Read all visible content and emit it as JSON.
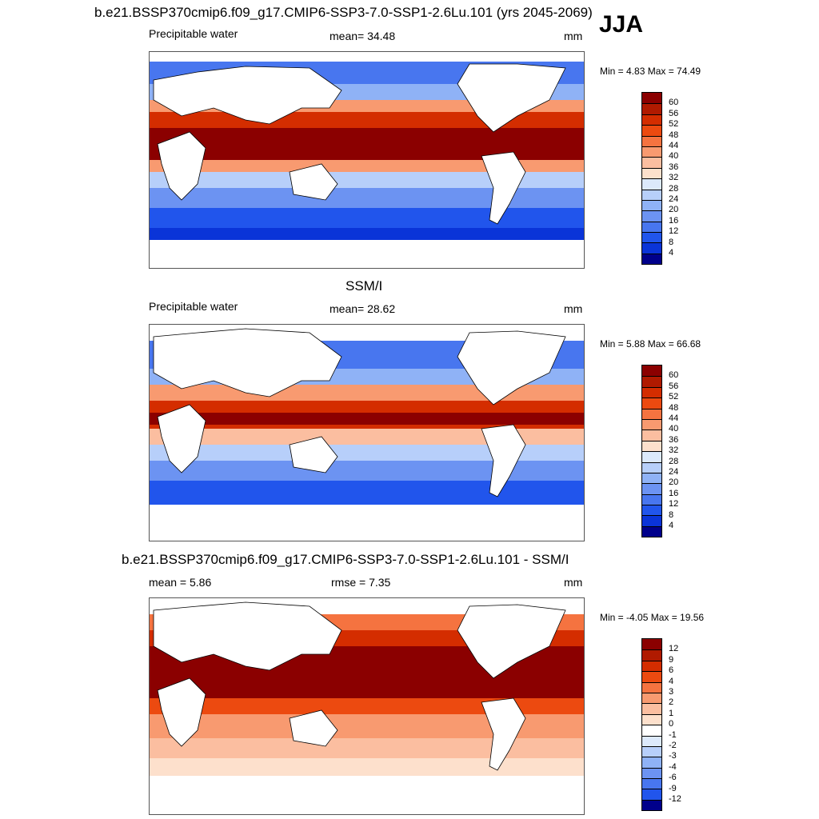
{
  "header": {
    "title": "b.e21.BSSP370cmip6.f09_g17.CMIP6-SSP3-7.0-SSP1-2.6Lu.101 (yrs 2045-2069)",
    "season": "JJA"
  },
  "panels": [
    {
      "field": "Precipitable water",
      "stat_text": "mean=  34.48",
      "units": "mm",
      "minmax": "Min =   4.83 Max =  74.49"
    },
    {
      "title": "SSM/I",
      "field": "Precipitable water",
      "stat_text": "mean=  28.62",
      "units": "mm",
      "minmax": "Min =   5.88 Max =  66.68"
    },
    {
      "title": "b.e21.BSSP370cmip6.f09_g17.CMIP6-SSP3-7.0-SSP1-2.6Lu.101 - SSM/I",
      "stat_text": "mean =   5.86",
      "rmse_text": "rmse =   7.35",
      "units": "mm",
      "minmax": "Min =  -4.05 Max =  19.56"
    }
  ],
  "colorbars": {
    "abs": {
      "labels": [
        "60",
        "56",
        "52",
        "48",
        "44",
        "40",
        "36",
        "32",
        "28",
        "24",
        "20",
        "16",
        "12",
        "8",
        "4"
      ],
      "colors": [
        "#8b0000",
        "#b01a00",
        "#d42d00",
        "#ec4a10",
        "#f57340",
        "#f89a70",
        "#fbbea0",
        "#fde0cc",
        "#dce9fb",
        "#b7cffa",
        "#8fb2f6",
        "#6c93f2",
        "#4876ef",
        "#2155ec",
        "#0a34d8",
        "#00008b"
      ]
    },
    "diff": {
      "labels": [
        "12",
        "9",
        "6",
        "4",
        "3",
        "2",
        "1",
        "0",
        "-1",
        "-2",
        "-3",
        "-4",
        "-6",
        "-9",
        "-12"
      ],
      "colors": [
        "#8b0000",
        "#b01a00",
        "#d42d00",
        "#ec4a10",
        "#f57340",
        "#f89a70",
        "#fbbea0",
        "#fde0cc",
        "#ffffff",
        "#dce9fb",
        "#b7cffa",
        "#8fb2f6",
        "#6c93f2",
        "#4876ef",
        "#2155ec",
        "#00008b"
      ]
    }
  }
}
